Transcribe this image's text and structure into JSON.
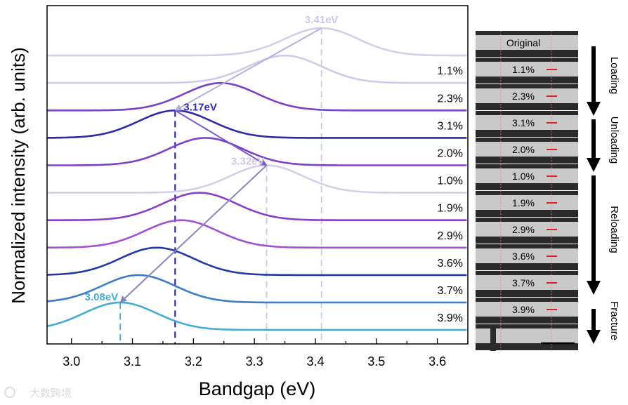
{
  "chart_data": {
    "type": "line",
    "title": "",
    "xlabel": "Bandgap (eV)",
    "ylabel": "Normalized intensity (arb. units)",
    "xlim": [
      2.96,
      3.65
    ],
    "ylim": [
      -0.51,
      11.82
    ],
    "xticks": [
      "3.0",
      "3.1",
      "3.2",
      "3.3",
      "3.4",
      "3.5",
      "3.6"
    ],
    "grid": false,
    "series": [
      {
        "name": "Original",
        "label": "",
        "offset": 10,
        "peak": 3.41,
        "color": "#d6cdea"
      },
      {
        "name": "1.1%",
        "label": "1.1%",
        "offset": 9,
        "peak": 3.35,
        "color": "#d2c8e8"
      },
      {
        "name": "2.3%",
        "label": "2.3%",
        "offset": 8,
        "peak": 3.245,
        "color": "#7a40c6"
      },
      {
        "name": "3.1%",
        "label": "3.1%",
        "offset": 7,
        "peak": 3.17,
        "color": "#2e2aa6"
      },
      {
        "name": "2.0%",
        "label": "2.0%",
        "offset": 6,
        "peak": 3.22,
        "color": "#7b42c8"
      },
      {
        "name": "1.0%",
        "label": "1.0%",
        "offset": 5,
        "peak": 3.32,
        "color": "#d6cdea"
      },
      {
        "name": "1.9%",
        "label": "1.9%",
        "offset": 4,
        "peak": 3.21,
        "color": "#8a3ccb"
      },
      {
        "name": "2.9%",
        "label": "2.9%",
        "offset": 3,
        "peak": 3.18,
        "color": "#a050d2"
      },
      {
        "name": "3.6%",
        "label": "3.6%",
        "offset": 2,
        "peak": 3.14,
        "color": "#2438a6"
      },
      {
        "name": "3.7%",
        "label": "3.7%",
        "offset": 1,
        "peak": 3.11,
        "color": "#3b7cc8"
      },
      {
        "name": "3.9%",
        "label": "3.9%",
        "offset": 0,
        "peak": 3.08,
        "color": "#45acd2"
      }
    ],
    "peak_width_sigma": 0.06,
    "annotations": [
      {
        "text": "3.41eV",
        "x": 3.41,
        "series": 0,
        "color": "#cfc6e6"
      },
      {
        "text": "3.17eV",
        "x": 3.17,
        "series": 3,
        "color": "#2e2aa6"
      },
      {
        "text": "3.32eV",
        "x": 3.32,
        "series": 5,
        "color": "#cfc6e6"
      },
      {
        "text": "3.08eV",
        "x": 3.08,
        "series": 10,
        "color": "#45acd2"
      }
    ],
    "arrows": [
      {
        "from": 0,
        "to": 3,
        "color": "#b8acdc"
      },
      {
        "from": 3,
        "to": 5,
        "color": "#7a5cc8"
      },
      {
        "from": 5,
        "to": 10,
        "color": "#8a84c0"
      }
    ]
  },
  "micrographs": {
    "frames": [
      "Original",
      "1.1%",
      "2.3%",
      "3.1%",
      "2.0%",
      "1.0%",
      "1.9%",
      "2.9%",
      "3.6%",
      "3.7%",
      "3.9%",
      ""
    ],
    "stages": [
      "Loading",
      "Unloading",
      "Reloading",
      "Fracture"
    ]
  },
  "watermark": "大数跨境"
}
